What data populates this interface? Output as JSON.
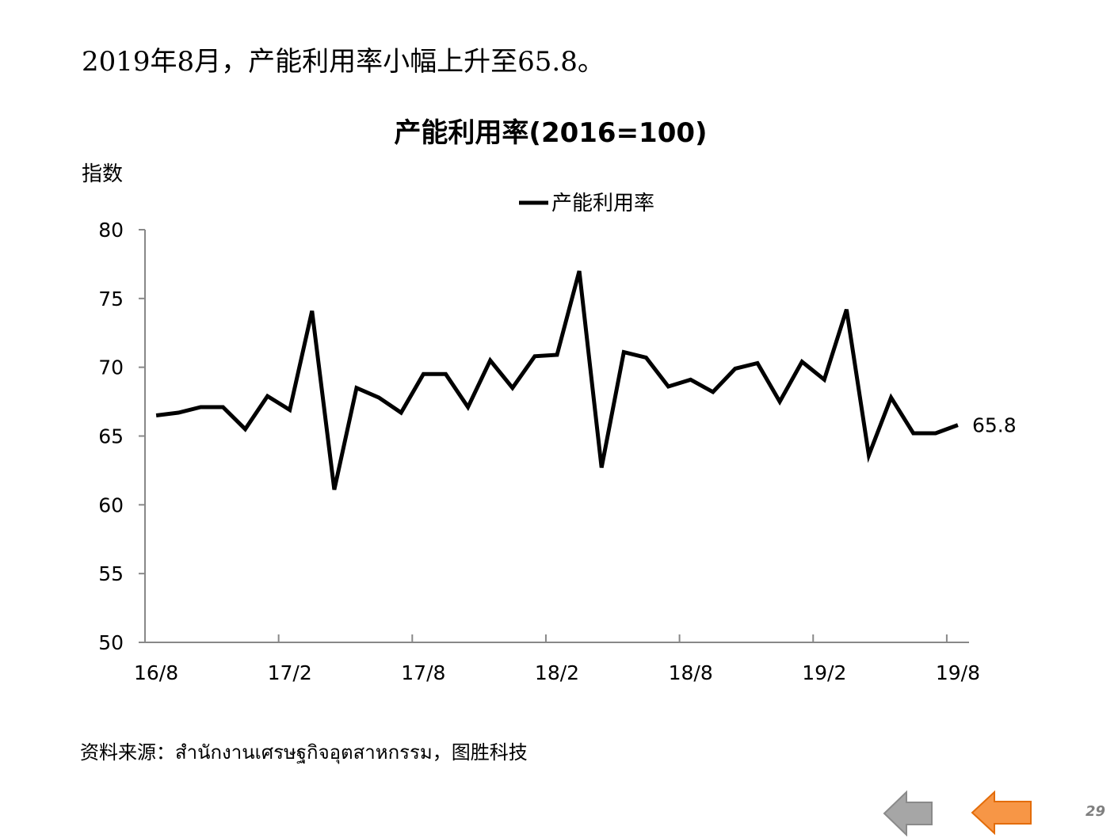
{
  "slide": {
    "headline": "2019年8月，产能利用率小幅上升至65.8。",
    "source": "资料来源：สำนักงานเศรษฐกิจอุตสาหกรรม，图胜科技",
    "page_number": "29",
    "y_unit_label": "指数"
  },
  "nav": {
    "back_icon": "left-arrow-gray",
    "forward_icon": "left-arrow-orange",
    "back_color": "#A6A6A6",
    "forward_color": "#F79646"
  },
  "chart_data": {
    "type": "line",
    "title": "产能利用率(2016=100)",
    "ylabel": "指数",
    "xlabel": "",
    "ylim": [
      50,
      80
    ],
    "yticks": [
      "50",
      "55",
      "60",
      "65",
      "70",
      "75",
      "80"
    ],
    "xtick_labels": [
      "16/8",
      "17/2",
      "17/8",
      "18/2",
      "18/8",
      "19/2",
      "19/8"
    ],
    "legend_position": "top-center",
    "grid": false,
    "end_label": "65.8",
    "line_color": "#000000",
    "series": [
      {
        "name": "产能利用率",
        "x": [
          "16/8",
          "16/9",
          "16/10",
          "16/11",
          "16/12",
          "17/1",
          "17/2",
          "17/3",
          "17/4",
          "17/5",
          "17/6",
          "17/7",
          "17/8",
          "17/9",
          "17/10",
          "17/11",
          "17/12",
          "18/1",
          "18/2",
          "18/3",
          "18/4",
          "18/5",
          "18/6",
          "18/7",
          "18/8",
          "18/9",
          "18/10",
          "18/11",
          "18/12",
          "19/1",
          "19/2",
          "19/3",
          "19/4",
          "19/5",
          "19/6",
          "19/7",
          "19/8"
        ],
        "values": [
          66.5,
          66.7,
          67.1,
          67.1,
          65.5,
          67.9,
          66.9,
          74.1,
          61.1,
          68.5,
          67.8,
          66.7,
          69.5,
          69.5,
          67.1,
          70.5,
          68.5,
          70.8,
          70.9,
          77.0,
          62.7,
          71.1,
          70.7,
          68.6,
          69.1,
          68.2,
          69.9,
          70.3,
          67.5,
          70.4,
          69.1,
          74.2,
          63.6,
          67.8,
          65.2,
          65.2,
          65.8
        ]
      }
    ]
  }
}
